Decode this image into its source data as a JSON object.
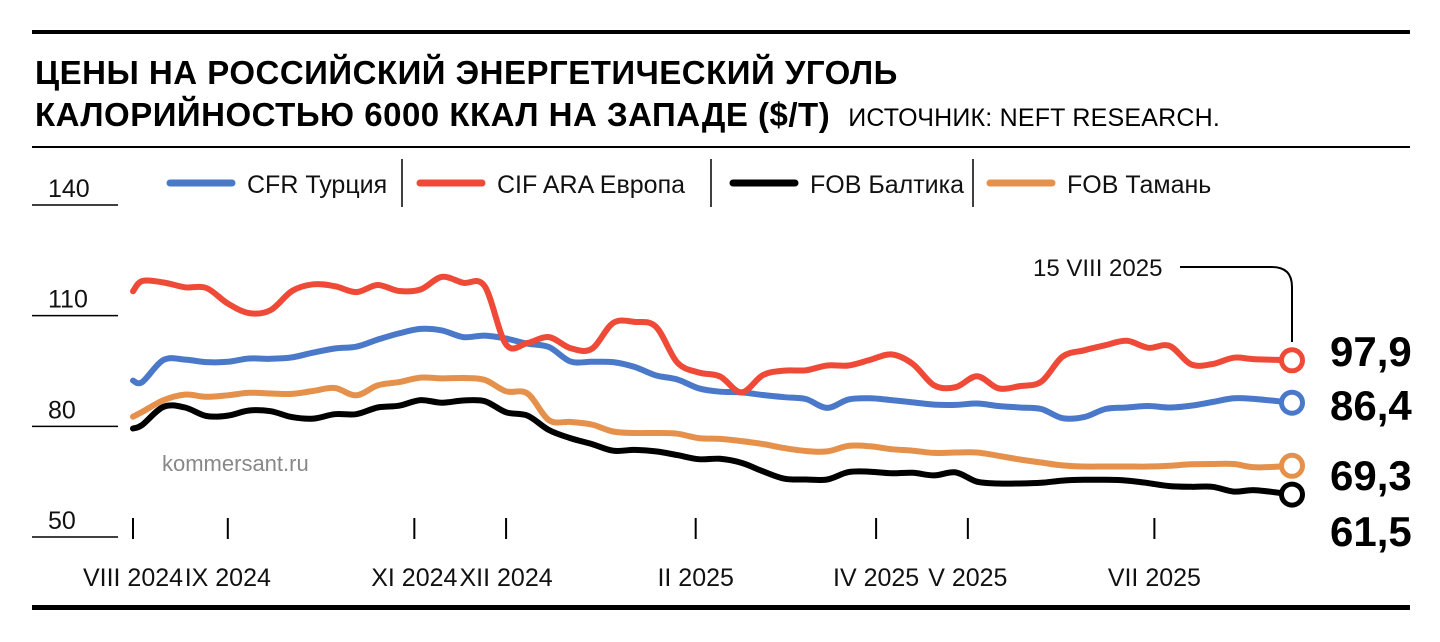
{
  "header": {
    "title_line1": "ЦЕНЫ НА РОССИЙСКИЙ ЭНЕРГЕТИЧЕСКИЙ УГОЛЬ",
    "title_line2": "КАЛОРИЙНОСТЬЮ 6000 ККАЛ НА ЗАПАДЕ ($/Т)",
    "source": "ИСТОЧНИК: NEFT RESEARCH."
  },
  "watermark": "kommersant.ru",
  "annotation": {
    "label": "15 VIII 2025"
  },
  "chart_data": {
    "type": "line",
    "title": "ЦЕНЫ НА РОССИЙСКИЙ ЭНЕРГЕТИЧЕСКИЙ УГОЛЬ КАЛОРИЙНОСТЬЮ 6000 ККАЛ НА ЗАПАДЕ ($/Т)",
    "xlabel": "",
    "ylabel": "",
    "ylim": [
      50,
      140
    ],
    "yticks": [
      140,
      110,
      80,
      50
    ],
    "xlim": [
      "2024-08-01",
      "2025-08-15"
    ],
    "xticks": [
      {
        "date": "2024-08-01",
        "label": "VIII 2024"
      },
      {
        "date": "2024-09-01",
        "label": "IX 2024"
      },
      {
        "date": "2024-11-01",
        "label": "XI 2024"
      },
      {
        "date": "2024-12-01",
        "label": "XII 2024"
      },
      {
        "date": "2025-02-01",
        "label": "II 2025"
      },
      {
        "date": "2025-04-01",
        "label": "IV 2025"
      },
      {
        "date": "2025-05-01",
        "label": "V 2025"
      },
      {
        "date": "2025-07-01",
        "label": "VII 2025"
      }
    ],
    "legend": "top",
    "grid": false,
    "series": [
      {
        "name": "CFR Турция",
        "color": "#4a79c9",
        "end_label": "86,4",
        "points": [
          [
            "2024-08-01",
            92.4
          ],
          [
            "2024-08-04",
            92.0
          ],
          [
            "2024-08-11",
            98.0
          ],
          [
            "2024-08-18",
            98.1
          ],
          [
            "2024-08-25",
            97.4
          ],
          [
            "2024-09-01",
            97.5
          ],
          [
            "2024-09-08",
            98.4
          ],
          [
            "2024-09-15",
            98.3
          ],
          [
            "2024-09-22",
            98.7
          ],
          [
            "2024-09-29",
            100.0
          ],
          [
            "2024-10-06",
            101.1
          ],
          [
            "2024-10-13",
            101.6
          ],
          [
            "2024-10-20",
            103.5
          ],
          [
            "2024-10-27",
            105.2
          ],
          [
            "2024-11-03",
            106.4
          ],
          [
            "2024-11-10",
            106.0
          ],
          [
            "2024-11-17",
            104.2
          ],
          [
            "2024-11-24",
            104.6
          ],
          [
            "2024-12-01",
            103.8
          ],
          [
            "2024-12-08",
            102.4
          ],
          [
            "2024-12-15",
            101.5
          ],
          [
            "2024-12-22",
            97.6
          ],
          [
            "2024-12-29",
            97.5
          ],
          [
            "2025-01-05",
            97.4
          ],
          [
            "2025-01-12",
            96.1
          ],
          [
            "2025-01-19",
            93.8
          ],
          [
            "2025-01-26",
            92.7
          ],
          [
            "2025-02-02",
            90.3
          ],
          [
            "2025-02-09",
            89.4
          ],
          [
            "2025-02-16",
            89.2
          ],
          [
            "2025-02-23",
            88.5
          ],
          [
            "2025-03-02",
            87.9
          ],
          [
            "2025-03-09",
            87.4
          ],
          [
            "2025-03-16",
            85.0
          ],
          [
            "2025-03-23",
            87.3
          ],
          [
            "2025-03-30",
            87.6
          ],
          [
            "2025-04-06",
            87.1
          ],
          [
            "2025-04-13",
            86.5
          ],
          [
            "2025-04-20",
            85.9
          ],
          [
            "2025-04-27",
            85.8
          ],
          [
            "2025-05-04",
            86.2
          ],
          [
            "2025-05-11",
            85.5
          ],
          [
            "2025-05-18",
            85.1
          ],
          [
            "2025-05-25",
            84.7
          ],
          [
            "2025-06-01",
            82.2
          ],
          [
            "2025-06-08",
            82.5
          ],
          [
            "2025-06-15",
            84.7
          ],
          [
            "2025-06-22",
            85.1
          ],
          [
            "2025-06-29",
            85.5
          ],
          [
            "2025-07-06",
            85.1
          ],
          [
            "2025-07-13",
            85.6
          ],
          [
            "2025-07-20",
            86.6
          ],
          [
            "2025-07-27",
            87.6
          ],
          [
            "2025-08-03",
            87.4
          ],
          [
            "2025-08-15",
            86.4
          ]
        ]
      },
      {
        "name": "CIF ARA Европа",
        "color": "#ef4a38",
        "end_label": "97,9",
        "points": [
          [
            "2024-08-01",
            116.6
          ],
          [
            "2024-08-04",
            119.4
          ],
          [
            "2024-08-11",
            119.0
          ],
          [
            "2024-08-18",
            117.7
          ],
          [
            "2024-08-25",
            117.5
          ],
          [
            "2024-09-01",
            113.3
          ],
          [
            "2024-09-08",
            110.7
          ],
          [
            "2024-09-15",
            111.5
          ],
          [
            "2024-09-22",
            116.7
          ],
          [
            "2024-09-29",
            118.5
          ],
          [
            "2024-10-06",
            118.0
          ],
          [
            "2024-10-13",
            116.4
          ],
          [
            "2024-10-20",
            118.3
          ],
          [
            "2024-10-27",
            116.7
          ],
          [
            "2024-11-03",
            117.1
          ],
          [
            "2024-11-10",
            120.5
          ],
          [
            "2024-11-17",
            118.9
          ],
          [
            "2024-11-24",
            118.0
          ],
          [
            "2024-12-01",
            102.2
          ],
          [
            "2024-12-08",
            102.6
          ],
          [
            "2024-12-15",
            104.2
          ],
          [
            "2024-12-22",
            101.2
          ],
          [
            "2024-12-29",
            101.0
          ],
          [
            "2025-01-05",
            108.0
          ],
          [
            "2025-01-12",
            108.3
          ],
          [
            "2025-01-19",
            107.0
          ],
          [
            "2025-01-26",
            97.3
          ],
          [
            "2025-02-02",
            94.6
          ],
          [
            "2025-02-09",
            93.5
          ],
          [
            "2025-02-16",
            89.2
          ],
          [
            "2025-02-23",
            93.9
          ],
          [
            "2025-03-02",
            95.1
          ],
          [
            "2025-03-09",
            95.2
          ],
          [
            "2025-03-16",
            96.5
          ],
          [
            "2025-03-23",
            96.5
          ],
          [
            "2025-03-30",
            98.0
          ],
          [
            "2025-04-06",
            99.5
          ],
          [
            "2025-04-13",
            96.9
          ],
          [
            "2025-04-20",
            91.1
          ],
          [
            "2025-04-27",
            90.6
          ],
          [
            "2025-05-04",
            93.6
          ],
          [
            "2025-05-11",
            90.3
          ],
          [
            "2025-05-18",
            90.9
          ],
          [
            "2025-05-25",
            92.1
          ],
          [
            "2025-06-01",
            98.9
          ],
          [
            "2025-06-08",
            100.6
          ],
          [
            "2025-06-15",
            102.0
          ],
          [
            "2025-06-22",
            103.2
          ],
          [
            "2025-06-29",
            101.3
          ],
          [
            "2025-07-06",
            101.8
          ],
          [
            "2025-07-13",
            96.8
          ],
          [
            "2025-07-20",
            96.9
          ],
          [
            "2025-07-27",
            98.6
          ],
          [
            "2025-08-03",
            98.2
          ],
          [
            "2025-08-15",
            97.9
          ]
        ]
      },
      {
        "name": "FOB Балтика",
        "color": "#000000",
        "end_label": "61,5",
        "points": [
          [
            "2024-08-01",
            79.4
          ],
          [
            "2024-08-04",
            80.4
          ],
          [
            "2024-08-11",
            85.3
          ],
          [
            "2024-08-18",
            85.1
          ],
          [
            "2024-08-25",
            82.8
          ],
          [
            "2024-09-01",
            82.9
          ],
          [
            "2024-09-08",
            84.3
          ],
          [
            "2024-09-15",
            84.1
          ],
          [
            "2024-09-22",
            82.5
          ],
          [
            "2024-09-29",
            82.1
          ],
          [
            "2024-10-06",
            83.3
          ],
          [
            "2024-10-13",
            83.3
          ],
          [
            "2024-10-20",
            85.1
          ],
          [
            "2024-10-27",
            85.6
          ],
          [
            "2024-11-03",
            87.1
          ],
          [
            "2024-11-10",
            86.4
          ],
          [
            "2024-11-17",
            87.0
          ],
          [
            "2024-11-24",
            86.8
          ],
          [
            "2024-12-01",
            83.8
          ],
          [
            "2024-12-08",
            82.9
          ],
          [
            "2024-12-15",
            79.0
          ],
          [
            "2024-12-22",
            76.8
          ],
          [
            "2024-12-29",
            75.2
          ],
          [
            "2025-01-05",
            73.4
          ],
          [
            "2025-01-12",
            73.6
          ],
          [
            "2025-01-19",
            73.2
          ],
          [
            "2025-01-26",
            72.2
          ],
          [
            "2025-02-02",
            71.1
          ],
          [
            "2025-02-09",
            71.2
          ],
          [
            "2025-02-16",
            70.1
          ],
          [
            "2025-02-23",
            67.8
          ],
          [
            "2025-03-02",
            65.8
          ],
          [
            "2025-03-09",
            65.6
          ],
          [
            "2025-03-16",
            65.6
          ],
          [
            "2025-03-23",
            67.6
          ],
          [
            "2025-03-30",
            67.7
          ],
          [
            "2025-04-06",
            67.3
          ],
          [
            "2025-04-13",
            67.4
          ],
          [
            "2025-04-20",
            66.7
          ],
          [
            "2025-04-27",
            67.5
          ],
          [
            "2025-05-04",
            65.0
          ],
          [
            "2025-05-11",
            64.5
          ],
          [
            "2025-05-18",
            64.5
          ],
          [
            "2025-05-25",
            64.7
          ],
          [
            "2025-06-01",
            65.3
          ],
          [
            "2025-06-08",
            65.5
          ],
          [
            "2025-06-15",
            65.5
          ],
          [
            "2025-06-22",
            65.3
          ],
          [
            "2025-06-29",
            64.6
          ],
          [
            "2025-07-06",
            63.8
          ],
          [
            "2025-07-13",
            63.6
          ],
          [
            "2025-07-20",
            63.6
          ],
          [
            "2025-07-27",
            62.3
          ],
          [
            "2025-08-03",
            62.7
          ],
          [
            "2025-08-15",
            61.5
          ]
        ]
      },
      {
        "name": "FOB Тамань",
        "color": "#e5914b",
        "end_label": "69,3",
        "points": [
          [
            "2024-08-01",
            82.6
          ],
          [
            "2024-08-04",
            83.9
          ],
          [
            "2024-08-11",
            87.1
          ],
          [
            "2024-08-18",
            88.6
          ],
          [
            "2024-08-25",
            88.0
          ],
          [
            "2024-09-01",
            88.4
          ],
          [
            "2024-09-08",
            89.1
          ],
          [
            "2024-09-15",
            88.9
          ],
          [
            "2024-09-22",
            88.8
          ],
          [
            "2024-09-29",
            89.6
          ],
          [
            "2024-10-06",
            90.4
          ],
          [
            "2024-10-13",
            88.4
          ],
          [
            "2024-10-20",
            91.1
          ],
          [
            "2024-10-27",
            92.0
          ],
          [
            "2024-11-03",
            93.2
          ],
          [
            "2024-11-10",
            93.0
          ],
          [
            "2024-11-17",
            93.1
          ],
          [
            "2024-11-24",
            92.6
          ],
          [
            "2024-12-01",
            89.5
          ],
          [
            "2024-12-08",
            88.9
          ],
          [
            "2024-12-15",
            81.7
          ],
          [
            "2024-12-22",
            81.2
          ],
          [
            "2024-12-29",
            80.5
          ],
          [
            "2025-01-05",
            78.6
          ],
          [
            "2025-01-12",
            78.2
          ],
          [
            "2025-01-19",
            78.2
          ],
          [
            "2025-01-26",
            78.0
          ],
          [
            "2025-02-02",
            76.8
          ],
          [
            "2025-02-09",
            76.6
          ],
          [
            "2025-02-16",
            76.0
          ],
          [
            "2025-02-23",
            75.2
          ],
          [
            "2025-03-02",
            74.1
          ],
          [
            "2025-03-09",
            73.3
          ],
          [
            "2025-03-16",
            73.2
          ],
          [
            "2025-03-23",
            74.7
          ],
          [
            "2025-03-30",
            74.6
          ],
          [
            "2025-04-06",
            73.8
          ],
          [
            "2025-04-13",
            73.4
          ],
          [
            "2025-04-20",
            72.8
          ],
          [
            "2025-04-27",
            72.9
          ],
          [
            "2025-05-04",
            72.9
          ],
          [
            "2025-05-11",
            72.0
          ],
          [
            "2025-05-18",
            71.0
          ],
          [
            "2025-05-25",
            70.2
          ],
          [
            "2025-06-01",
            69.4
          ],
          [
            "2025-06-08",
            69.1
          ],
          [
            "2025-06-15",
            69.1
          ],
          [
            "2025-06-22",
            69.1
          ],
          [
            "2025-06-29",
            69.1
          ],
          [
            "2025-07-06",
            69.3
          ],
          [
            "2025-07-13",
            69.7
          ],
          [
            "2025-07-20",
            69.8
          ],
          [
            "2025-07-27",
            69.8
          ],
          [
            "2025-08-03",
            68.9
          ],
          [
            "2025-08-15",
            69.3
          ]
        ]
      }
    ]
  }
}
